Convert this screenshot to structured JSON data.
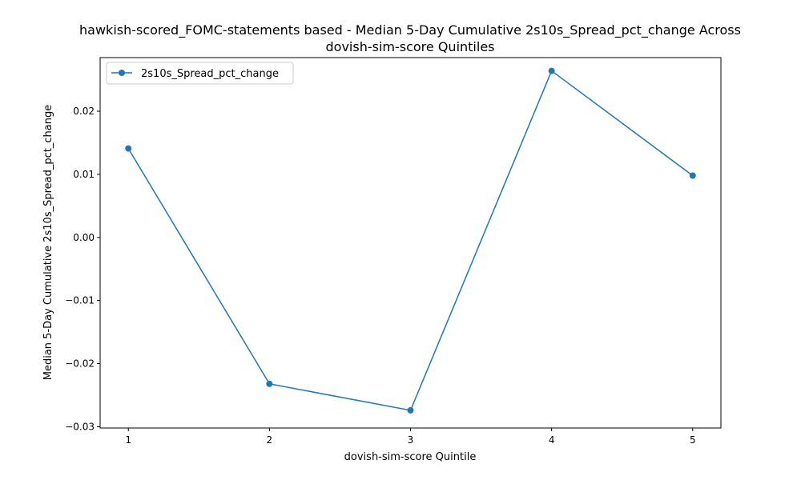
{
  "chart_data": {
    "type": "line",
    "title_line1": "hawkish-scored_FOMC-statements based - Median 5-Day Cumulative 2s10s_Spread_pct_change Across",
    "title_line2": "dovish-sim-score Quintiles",
    "xlabel": "dovish-sim-score Quintile",
    "ylabel": "Median 5-Day Cumulative 2s10s_Spread_pct_change",
    "x": [
      1,
      2,
      3,
      4,
      5
    ],
    "x_tick_labels": [
      "1",
      "2",
      "3",
      "4",
      "5"
    ],
    "xlim": [
      0.8,
      5.2
    ],
    "ylim": [
      -0.0302,
      0.0285
    ],
    "y_ticks": [
      -0.03,
      -0.02,
      -0.01,
      0.0,
      0.01,
      0.02
    ],
    "y_tick_labels": [
      "−0.03",
      "−0.02",
      "−0.01",
      "0.00",
      "0.01",
      "0.02"
    ],
    "series": [
      {
        "name": "2s10s_Spread_pct_change",
        "values": [
          0.0141,
          -0.0232,
          -0.0274,
          0.0264,
          0.0098
        ],
        "color": "#1f77b4"
      }
    ],
    "legend_position": "top-left",
    "grid": false
  }
}
